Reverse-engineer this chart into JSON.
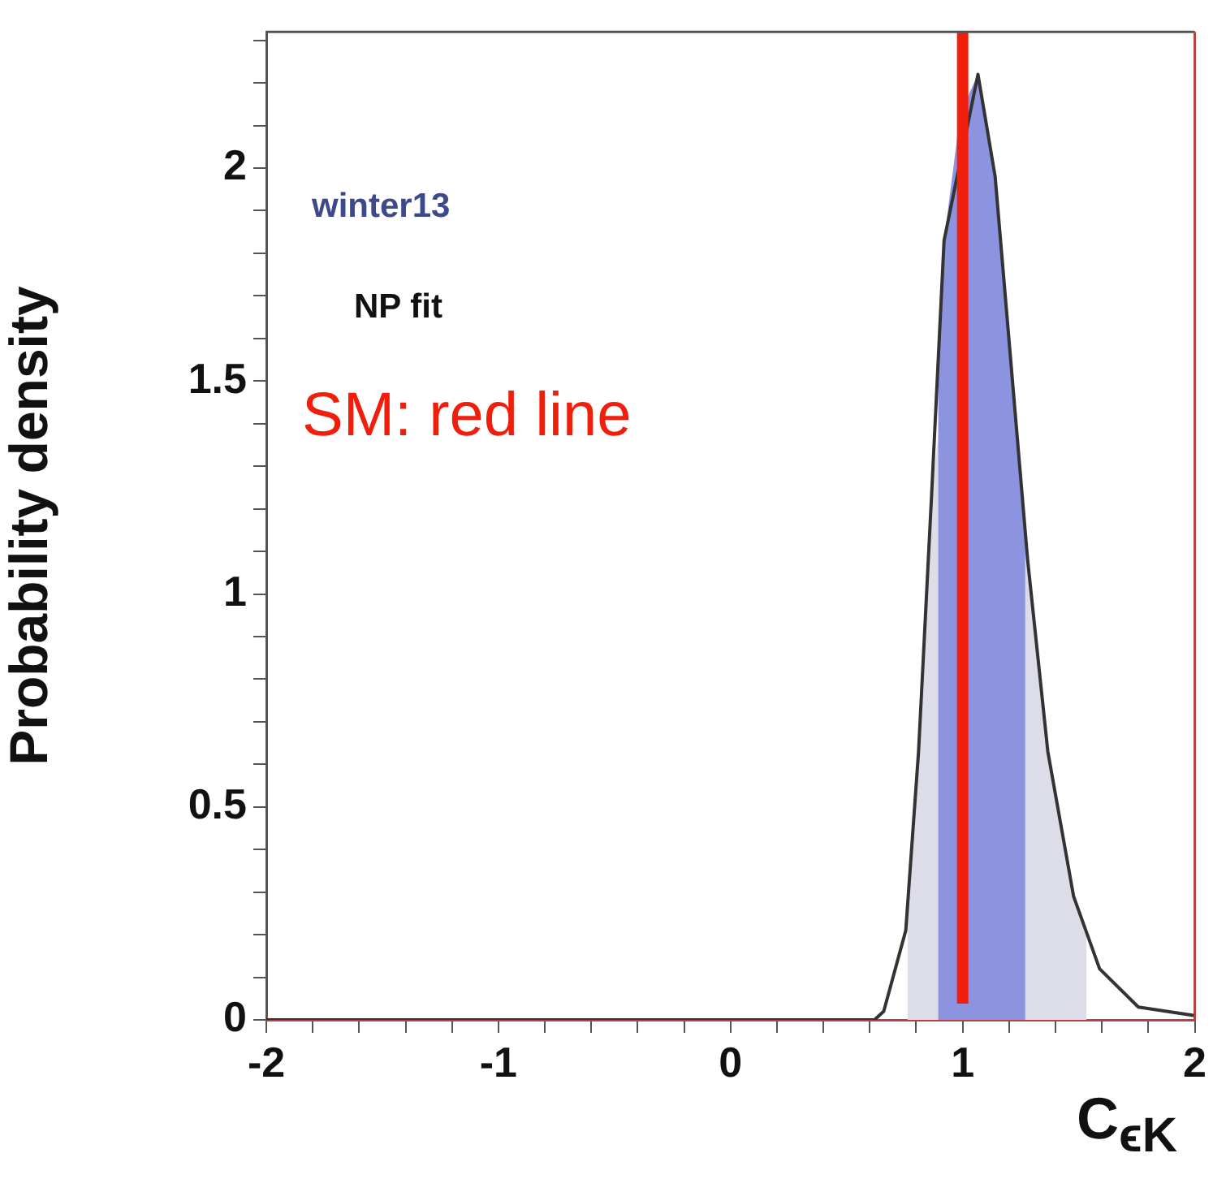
{
  "chart_data": {
    "type": "line",
    "xlabel": "C$_{ϵK}$",
    "ylabel": "Probability density",
    "series": [
      {
        "type": "area",
        "color": "#dcdde8",
        "x": [
          0.762,
          0.81,
          0.866,
          0.92,
          0.99,
          1.066,
          1.14,
          1.21,
          1.28,
          1.367,
          1.478,
          1.534
        ],
        "values": [
          0.24,
          0.63,
          1.23,
          null,
          null,
          2.22,
          null,
          null,
          1.08,
          0.63,
          0.29,
          0.2
        ]
      },
      {
        "type": "area",
        "color": "#8c94e0",
        "x": [
          0.894,
          0.92,
          0.99,
          1.066,
          1.14,
          1.21,
          1.27
        ],
        "values": [
          1.55,
          1.83,
          2.13,
          2.22,
          1.98,
          1.53,
          1.14
        ]
      },
      {
        "color": "#333333",
        "x": [
          -2,
          0.62,
          0.66,
          0.755,
          0.81,
          0.866,
          0.92,
          0.99,
          1.066,
          1.14,
          1.21,
          1.28,
          1.367,
          1.478,
          1.59,
          1.757,
          2
        ],
        "values": [
          0,
          0,
          0.02,
          0.21,
          0.63,
          1.23,
          1.83,
          null,
          2.22,
          1.98,
          1.53,
          1.08,
          0.63,
          0.29,
          0.12,
          0.03,
          0.01
        ]
      }
    ],
    "ref_lines": [
      {
        "axis": "x",
        "value": 1,
        "label": "SM: red line",
        "color": "#f01e0a"
      }
    ],
    "annotations": [
      "winter13",
      "NP fit"
    ],
    "xlim": [
      -2,
      2
    ],
    "ylim": [
      0,
      2.32
    ],
    "xticks": [
      -2,
      {
        "value": -1.8,
        "label": null
      },
      {
        "value": -1.6,
        "label": null
      },
      {
        "value": -1.4,
        "label": null
      },
      {
        "value": -1.2,
        "label": null
      },
      -1,
      {
        "value": -0.8,
        "label": null
      },
      {
        "value": -0.6,
        "label": null
      },
      {
        "value": -0.4,
        "label": null
      },
      {
        "value": -0.2,
        "label": null
      },
      0,
      {
        "value": 0.2,
        "label": null
      },
      {
        "value": 0.4,
        "label": null
      },
      {
        "value": 0.6,
        "label": null
      },
      {
        "value": 0.8,
        "label": null
      },
      1,
      {
        "value": 1.2,
        "label": null
      },
      {
        "value": 1.4,
        "label": null
      },
      {
        "value": 1.6,
        "label": null
      },
      {
        "value": 1.8,
        "label": null
      },
      2
    ],
    "yticks": [
      0,
      {
        "value": 0.1,
        "label": null
      },
      {
        "value": 0.2,
        "label": null
      },
      {
        "value": 0.3,
        "label": null
      },
      {
        "value": 0.4,
        "label": null
      },
      0.5,
      {
        "value": 0.6,
        "label": null
      },
      {
        "value": 0.7,
        "label": null
      },
      {
        "value": 0.8,
        "label": null
      },
      {
        "value": 0.9,
        "label": null
      },
      1,
      {
        "value": 1.1,
        "label": null
      },
      {
        "value": 1.2,
        "label": null
      },
      {
        "value": 1.3,
        "label": null
      },
      {
        "value": 1.4,
        "label": null
      },
      1.5,
      {
        "value": 1.6,
        "label": null
      },
      {
        "value": 1.7,
        "label": null
      },
      {
        "value": 1.8,
        "label": null
      },
      {
        "value": 1.9,
        "label": null
      },
      2,
      {
        "value": 2.1,
        "label": null
      },
      {
        "value": 2.2,
        "label": null
      },
      {
        "value": 2.3,
        "label": null
      }
    ],
    "grid": false,
    "legend": false,
    "marker": "none",
    "line_style": "solid"
  }
}
